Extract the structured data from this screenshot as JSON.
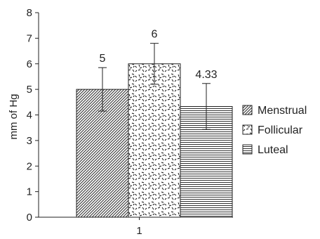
{
  "chart_data": {
    "type": "bar",
    "title": "",
    "xlabel": "",
    "ylabel": "mm of Hg",
    "ylim": [
      0,
      8
    ],
    "yticks": [
      0,
      1,
      2,
      3,
      4,
      5,
      6,
      7,
      8
    ],
    "categories": [
      "1"
    ],
    "grid": false,
    "legend_position": "right",
    "series": [
      {
        "name": "Menstrual",
        "values": [
          5
        ],
        "error": [
          0.85
        ],
        "data_label": "5",
        "pattern": "diagonal-hatch"
      },
      {
        "name": "Follicular",
        "values": [
          6
        ],
        "error": [
          0.8
        ],
        "data_label": "6",
        "pattern": "dashes"
      },
      {
        "name": "Luteal",
        "values": [
          4.33
        ],
        "error": [
          0.9
        ],
        "data_label": "4.33",
        "pattern": "horizontal-lines"
      }
    ]
  }
}
